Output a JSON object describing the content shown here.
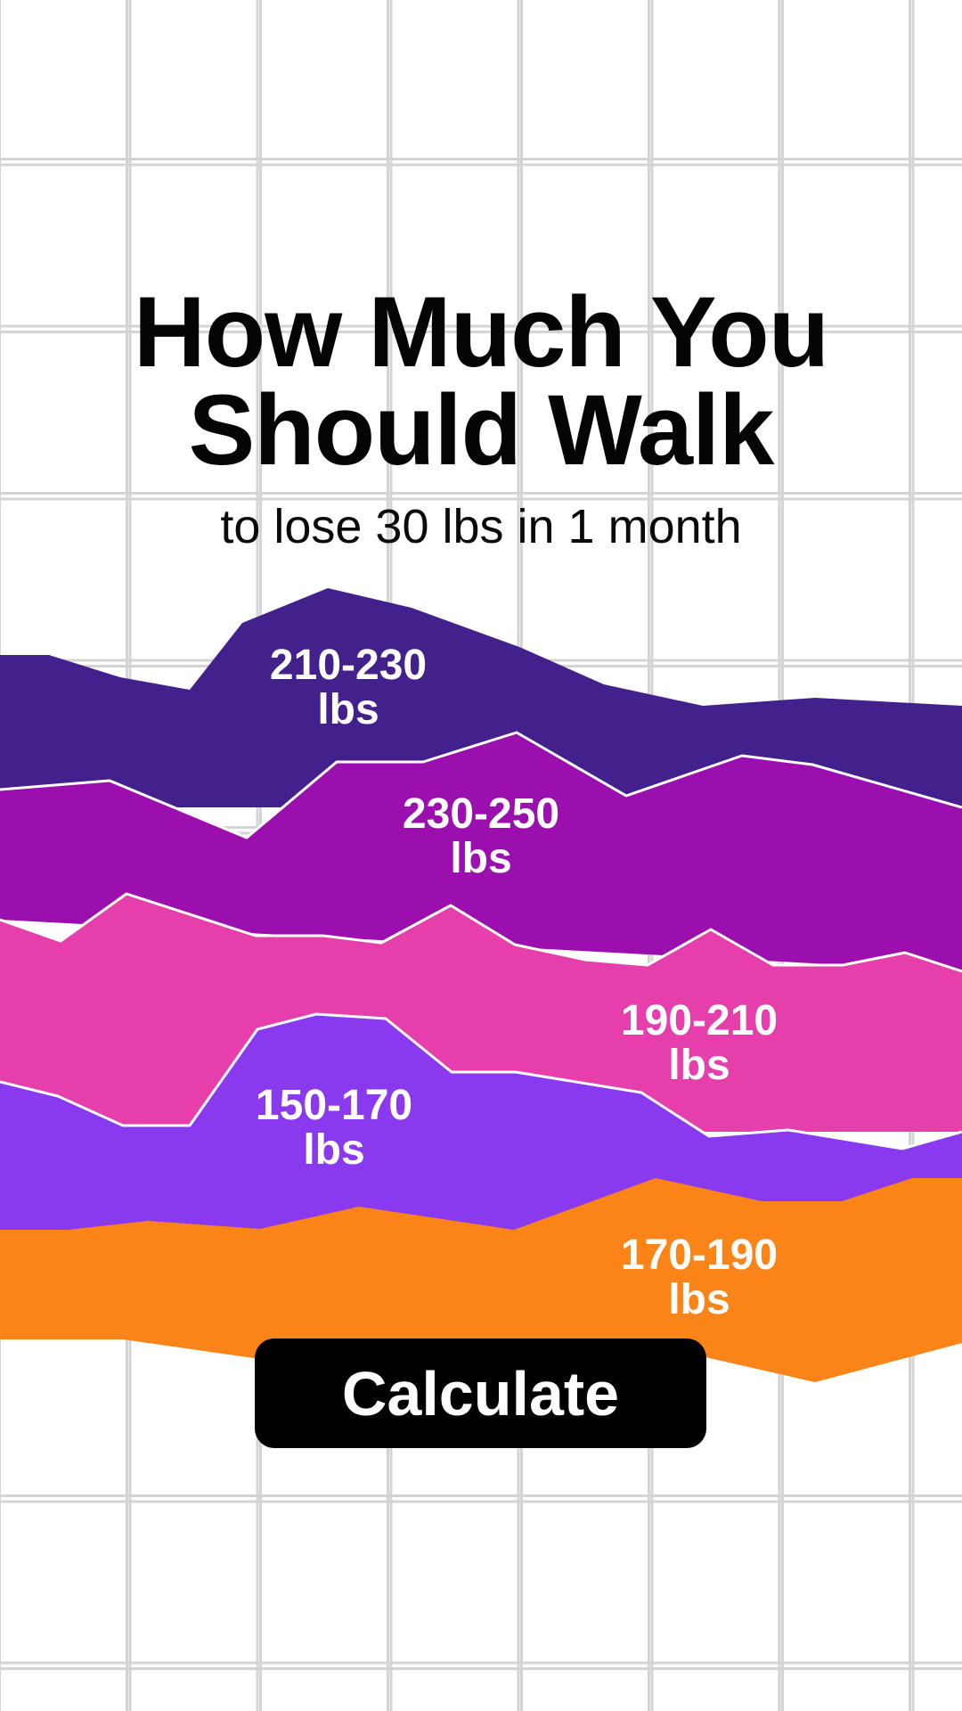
{
  "header": {
    "title_line1": "How Much You",
    "title_line2": "Should Walk",
    "subtitle": "to lose 30 lbs in 1 month"
  },
  "action": {
    "calculate_label": "Calculate"
  },
  "colors": {
    "band_210_230": "#43218c",
    "band_230_250": "#9a0fad",
    "band_190_210": "#e63fab",
    "band_150_170": "#8a3aee",
    "band_170_190": "#fb8418",
    "outline": "#ffffff"
  },
  "chart_data": {
    "type": "area",
    "series": [
      {
        "name": "210-230 lbs",
        "line1": "210-230",
        "line2": "lbs"
      },
      {
        "name": "230-250 lbs",
        "line1": "230-250",
        "line2": "lbs"
      },
      {
        "name": "190-210 lbs",
        "line1": "190-210",
        "line2": "lbs"
      },
      {
        "name": "150-170 lbs",
        "line1": "150-170",
        "line2": "lbs"
      },
      {
        "name": "170-190 lbs",
        "line1": "170-190",
        "line2": "lbs"
      }
    ]
  }
}
